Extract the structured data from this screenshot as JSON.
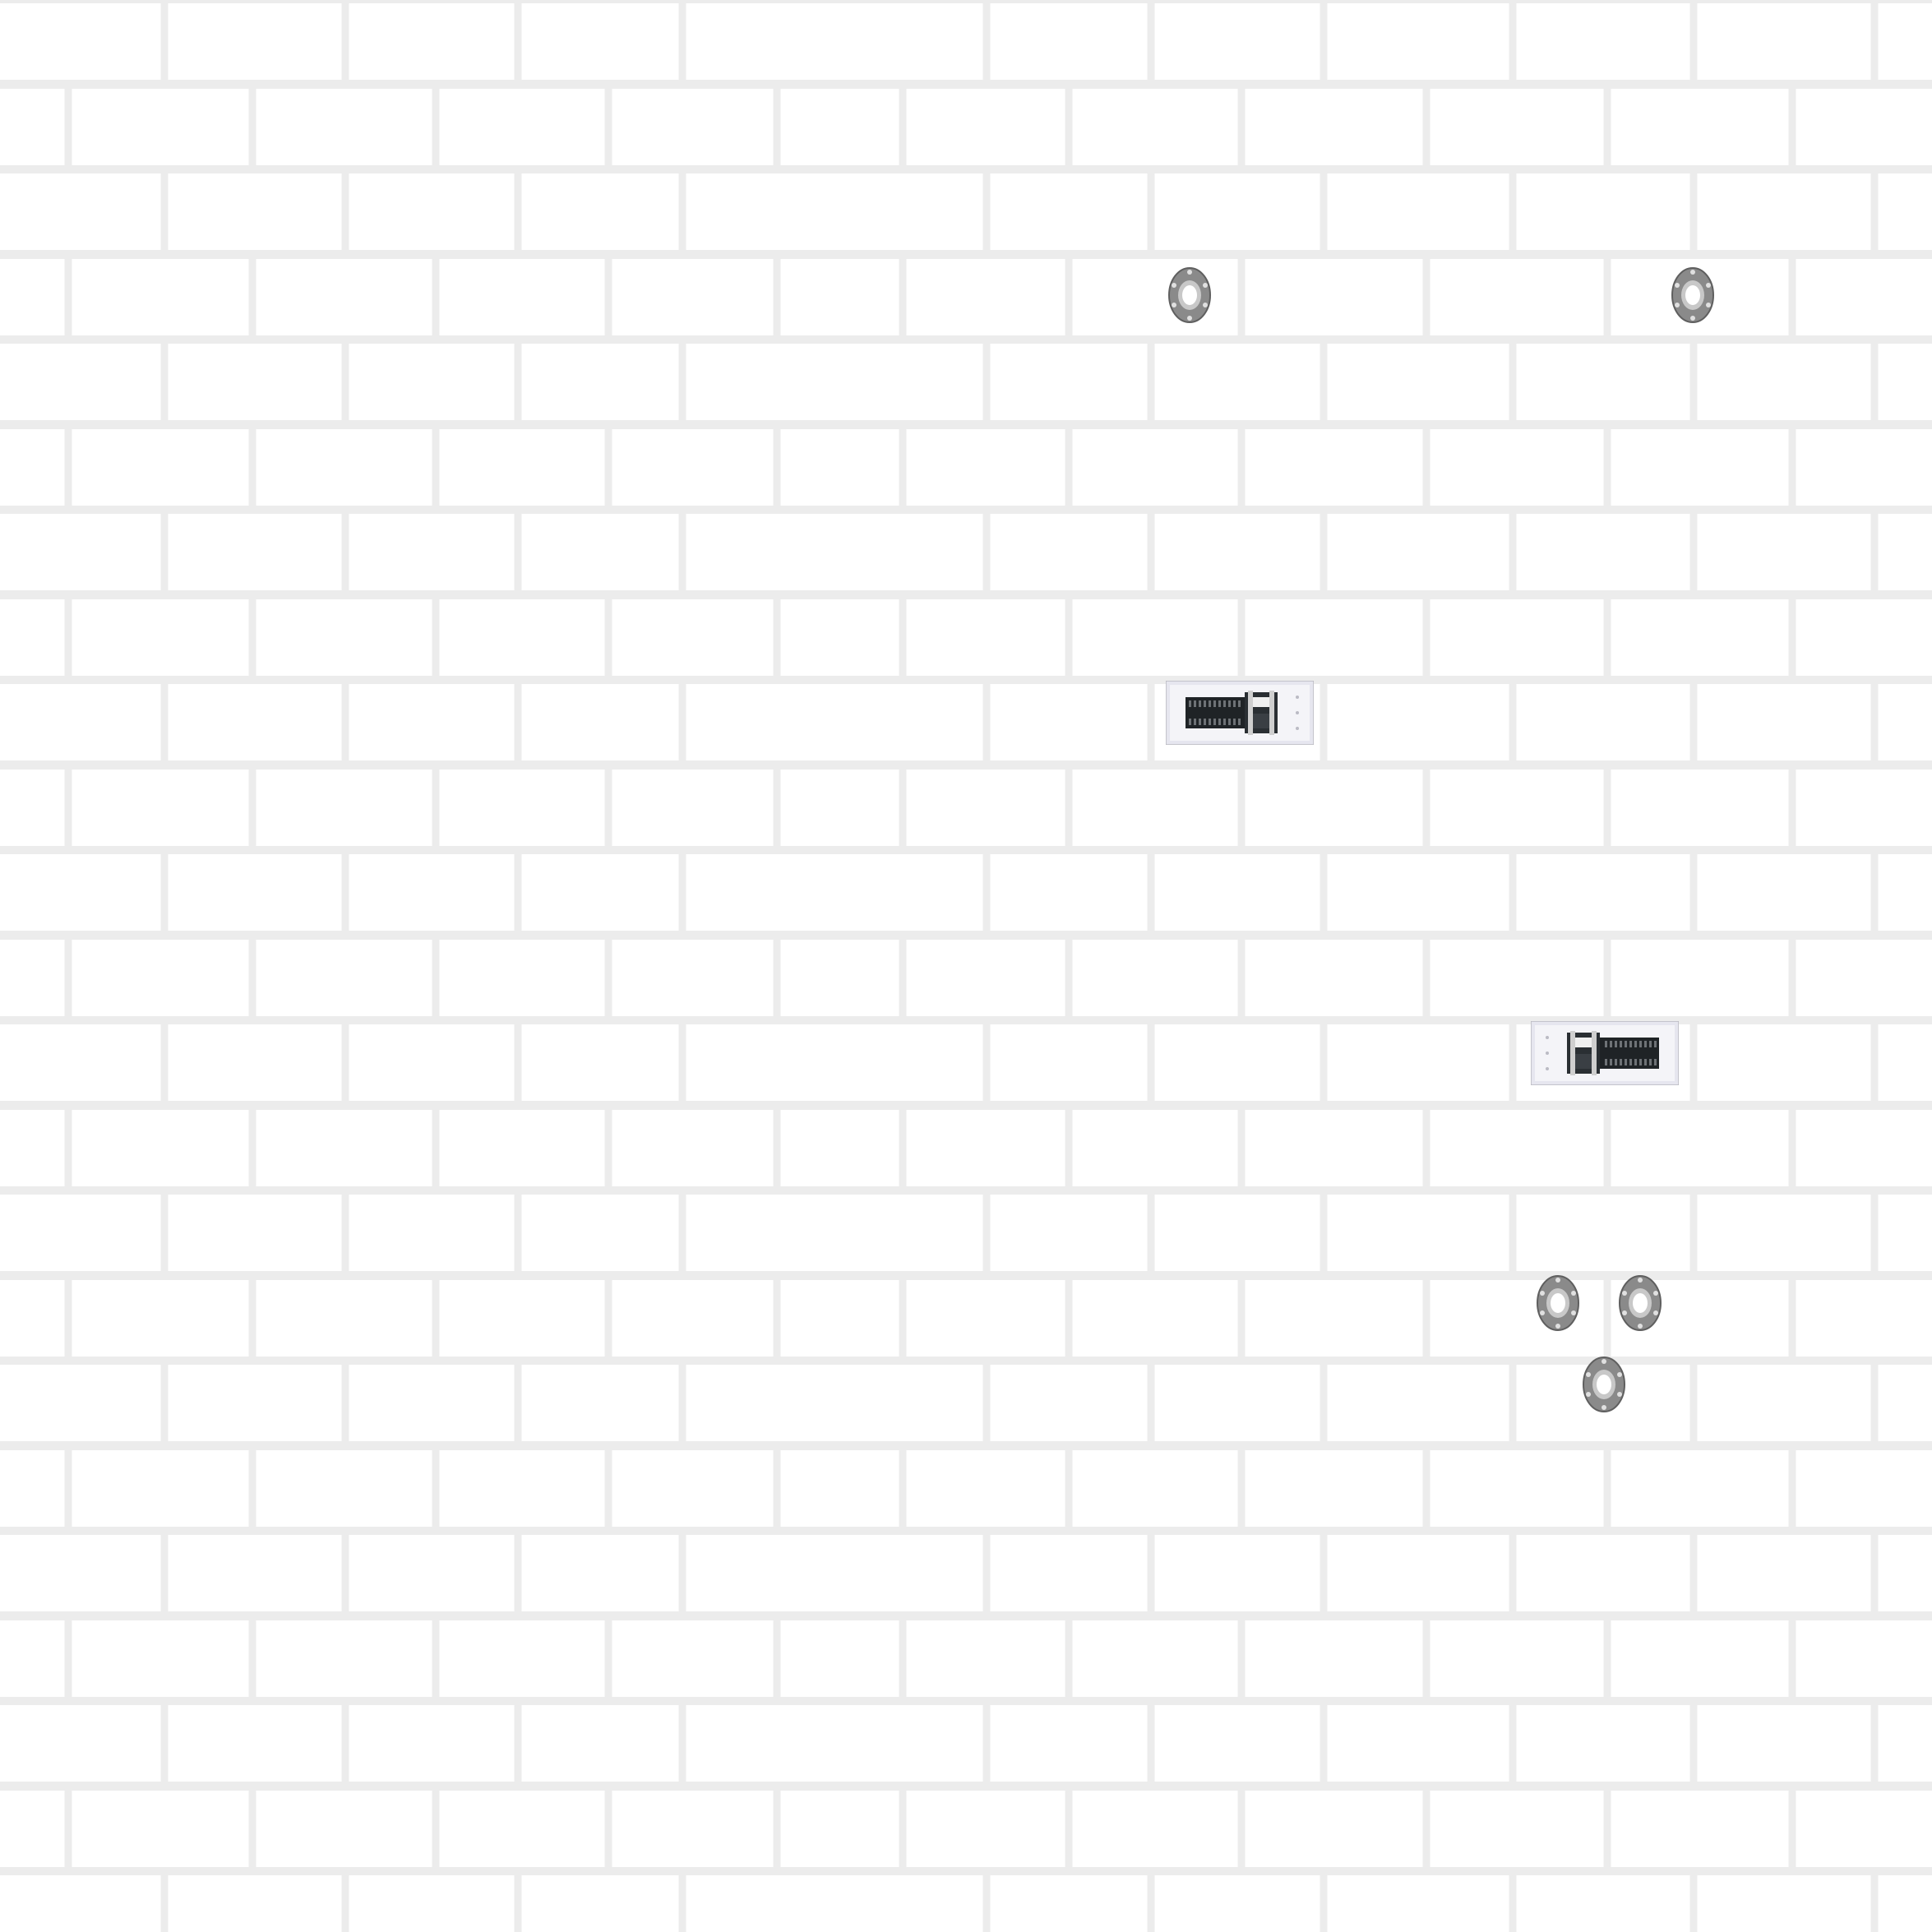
{
  "scene": {
    "background": "brick-wall",
    "colors": {
      "mortar": "#ececec",
      "brick": "#ffffff",
      "flange_metal": "#8a8a8a",
      "flange_rim": "#6d6d6d",
      "tray_frame": "#e6e6ef",
      "tray_body": "#1f2326"
    }
  },
  "components": {
    "flanges": [
      {
        "id": "flange-1",
        "icon": "pipe-flange-icon"
      },
      {
        "id": "flange-2",
        "icon": "pipe-flange-icon"
      },
      {
        "id": "flange-3",
        "icon": "pipe-flange-icon"
      },
      {
        "id": "flange-4",
        "icon": "pipe-flange-icon"
      },
      {
        "id": "flange-5",
        "icon": "pipe-flange-icon"
      }
    ],
    "terminal_blocks": [
      {
        "id": "terminal-block-1",
        "icon": "terminal-block-icon",
        "orientation": "left"
      },
      {
        "id": "terminal-block-2",
        "icon": "terminal-block-icon",
        "orientation": "right"
      }
    ]
  }
}
